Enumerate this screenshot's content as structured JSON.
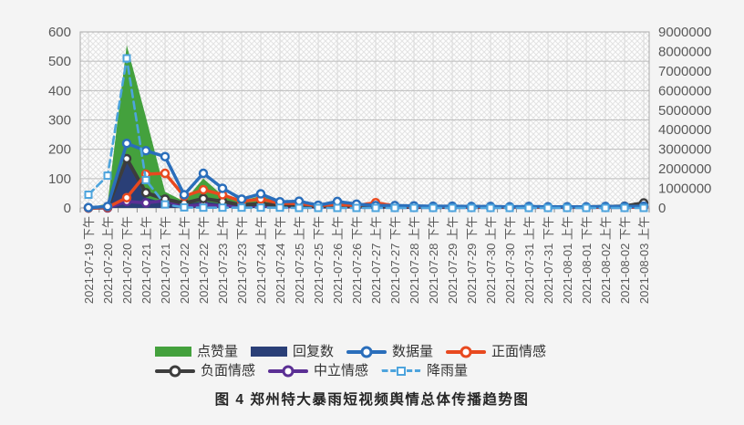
{
  "figure_caption": "图 4  郑州特大暴雨短视频舆情总体传播趋势图",
  "chart_data": {
    "type": "line",
    "x_labels": [
      "2021-07-19 下午",
      "2021-07-20 上午",
      "2021-07-20 下午",
      "2021-07-21 上午",
      "2021-07-21 下午",
      "2021-07-22 上午",
      "2021-07-22 下午",
      "2021-07-23 上午",
      "2021-07-23 下午",
      "2021-07-24 上午",
      "2021-07-24 下午",
      "2021-07-25 上午",
      "2021-07-25 下午",
      "2021-07-26 上午",
      "2021-07-26 下午",
      "2021-07-27 上午",
      "2021-07-27 下午",
      "2021-07-28 上午",
      "2021-07-28 下午",
      "2021-07-29 上午",
      "2021-07-29 下午",
      "2021-07-30 上午",
      "2021-07-30 下午",
      "2021-07-31 上午",
      "2021-07-31 下午",
      "2021-08-01 上午",
      "2021-08-01 下午",
      "2021-08-02 上午",
      "2021-08-02 下午",
      "2021-08-03 上午"
    ],
    "left_axis": {
      "range": [
        0,
        600
      ],
      "tick_step": 100,
      "tick_labels": [
        "0",
        "100",
        "200",
        "300",
        "400",
        "500",
        "600"
      ]
    },
    "right_axis": {
      "range": [
        0,
        9000000
      ],
      "tick_step": 1000000,
      "tick_labels": [
        "0",
        "1000000",
        "2000000",
        "3000000",
        "4000000",
        "5000000",
        "6000000",
        "7000000",
        "8000000",
        "9000000"
      ]
    },
    "grid": true,
    "legend_position": "bottom",
    "legend_rows": [
      [
        "likes",
        "replies",
        "data_volume",
        "positive_sentiment"
      ],
      [
        "negative_sentiment",
        "neutral_sentiment",
        "rainfall"
      ]
    ],
    "series": [
      {
        "key": "likes",
        "name": "点赞量",
        "type": "area",
        "color": "#44a13d",
        "values": [
          0,
          15,
          555,
          310,
          55,
          22,
          100,
          43,
          24,
          41,
          17,
          14,
          8,
          9,
          6,
          5,
          4,
          4,
          3,
          3,
          3,
          3,
          2,
          2,
          2,
          2,
          2,
          2,
          2,
          3
        ]
      },
      {
        "key": "replies",
        "name": "回复数",
        "type": "area",
        "color": "#2a3f77",
        "values": [
          0,
          4,
          165,
          35,
          18,
          12,
          22,
          14,
          10,
          12,
          8,
          8,
          5,
          6,
          4,
          4,
          3,
          3,
          3,
          3,
          3,
          2,
          2,
          2,
          2,
          2,
          2,
          2,
          3,
          9
        ]
      },
      {
        "key": "data_volume",
        "name": "数据量",
        "type": "line",
        "marker": "circle",
        "dashed": false,
        "color": "#2a6ebb",
        "values": [
          1,
          5,
          220,
          195,
          175,
          45,
          118,
          67,
          30,
          48,
          21,
          23,
          9,
          22,
          13,
          8,
          8,
          7,
          6,
          6,
          5,
          5,
          4,
          5,
          4,
          4,
          4,
          5,
          5,
          6
        ]
      },
      {
        "key": "positive_sentiment",
        "name": "正面情感",
        "type": "line",
        "marker": "circle",
        "dashed": false,
        "color": "#e8491f",
        "values": [
          0,
          2,
          35,
          115,
          118,
          40,
          62,
          45,
          22,
          30,
          16,
          15,
          8,
          12,
          8,
          18,
          7,
          6,
          5,
          5,
          4,
          4,
          3,
          3,
          3,
          3,
          3,
          3,
          3,
          4
        ]
      },
      {
        "key": "negative_sentiment",
        "name": "负面情感",
        "type": "line",
        "marker": "circle",
        "dashed": false,
        "color": "#3d3d3d",
        "values": [
          0,
          2,
          168,
          52,
          30,
          16,
          32,
          22,
          10,
          14,
          8,
          8,
          5,
          6,
          5,
          5,
          4,
          4,
          4,
          4,
          4,
          3,
          3,
          3,
          3,
          3,
          3,
          4,
          6,
          17
        ]
      },
      {
        "key": "neutral_sentiment",
        "name": "中立情感",
        "type": "line",
        "marker": "circle",
        "dashed": false,
        "color": "#5b2f94",
        "values": [
          0,
          0,
          22,
          17,
          25,
          5,
          11,
          6,
          8,
          8,
          4,
          4,
          3,
          3,
          3,
          3,
          2,
          2,
          2,
          2,
          2,
          2,
          2,
          2,
          2,
          2,
          2,
          2,
          2,
          3
        ]
      },
      {
        "key": "rainfall",
        "name": "降雨量",
        "type": "line",
        "marker": "square",
        "dashed": true,
        "color": "#4da4dd",
        "values": [
          45,
          110,
          510,
          95,
          12,
          2,
          1,
          1,
          1,
          1,
          1,
          0,
          0,
          0,
          0,
          0,
          0,
          0,
          0,
          0,
          0,
          0,
          0,
          0,
          0,
          0,
          0,
          0,
          0,
          0
        ]
      }
    ]
  }
}
